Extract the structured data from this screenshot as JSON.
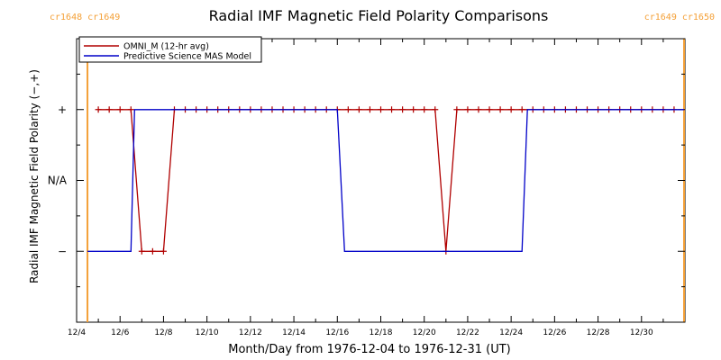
{
  "chart_data": {
    "type": "line",
    "title": "Radial IMF Magnetic Field Polarity Comparisons",
    "xlabel": "Month/Day from 1976-12-04 to 1976-12-31 (UT)",
    "ylabel": "Radial IMF Magnetic Field Polarity (−,+)",
    "xlim": [
      "1976-12-04 00:00",
      "1977-01-01 00:00"
    ],
    "ylim": [
      -2,
      2
    ],
    "grid": false,
    "legend_position": "top-left",
    "x_tick_labels": [
      "12/4",
      "12/6",
      "12/8",
      "12/10",
      "12/12",
      "12/14",
      "12/16",
      "12/18",
      "12/20",
      "12/22",
      "12/24",
      "12/26",
      "12/28",
      "12/30"
    ],
    "y_ticks": [
      {
        "label": "+",
        "value": 1
      },
      {
        "label": "N/A",
        "value": 0
      },
      {
        "label": "−",
        "value": -1
      }
    ],
    "carrington_markers": [
      {
        "time": "1976-12-04 12:00",
        "label": "cr1648 cr1649",
        "color": "#f4a037"
      },
      {
        "time": "1976-12-31 23:00",
        "label": "cr1649 cr1650",
        "color": "#f4a037"
      }
    ],
    "series": [
      {
        "name": "OMNI_M (12-hr avg)",
        "color": "#b00000",
        "marker": "+",
        "x": [
          "1976-12-05 00:00",
          "1976-12-05 12:00",
          "1976-12-06 00:00",
          "1976-12-06 12:00",
          "1976-12-07 00:00",
          "1976-12-07 12:00",
          "1976-12-08 00:00",
          "1976-12-08 12:00",
          "1976-12-09 00:00",
          "1976-12-09 12:00",
          "1976-12-10 00:00",
          "1976-12-10 12:00",
          "1976-12-11 00:00",
          "1976-12-11 12:00",
          "1976-12-12 00:00",
          "1976-12-12 12:00",
          "1976-12-13 00:00",
          "1976-12-13 12:00",
          "1976-12-14 00:00",
          "1976-12-14 12:00",
          "1976-12-15 00:00",
          "1976-12-15 12:00",
          "1976-12-16 00:00",
          "1976-12-16 12:00",
          "1976-12-17 00:00",
          "1976-12-17 12:00",
          "1976-12-18 00:00",
          "1976-12-18 12:00",
          "1976-12-19 00:00",
          "1976-12-19 12:00",
          "1976-12-20 00:00",
          "1976-12-20 12:00",
          "1976-12-21 00:00",
          "1976-12-21 12:00",
          "1976-12-22 00:00",
          "1976-12-22 12:00",
          "1976-12-23 00:00",
          "1976-12-23 12:00",
          "1976-12-24 00:00",
          "1976-12-24 12:00",
          "1976-12-25 00:00",
          "1976-12-25 12:00",
          "1976-12-26 00:00",
          "1976-12-26 12:00",
          "1976-12-27 00:00",
          "1976-12-27 12:00",
          "1976-12-28 00:00",
          "1976-12-28 12:00",
          "1976-12-29 00:00",
          "1976-12-29 12:00",
          "1976-12-30 00:00",
          "1976-12-30 12:00",
          "1976-12-31 00:00",
          "1976-12-31 12:00"
        ],
        "y": [
          1,
          1,
          1,
          1,
          -1,
          -1,
          -1,
          1,
          1,
          1,
          1,
          1,
          1,
          1,
          1,
          1,
          1,
          1,
          1,
          1,
          1,
          1,
          1,
          1,
          1,
          1,
          1,
          1,
          1,
          1,
          1,
          1,
          -1,
          1,
          1,
          1,
          1,
          1,
          1,
          1,
          1,
          1,
          1,
          1,
          1,
          1,
          1,
          1,
          1,
          1,
          1,
          1,
          1,
          1
        ]
      },
      {
        "name": "Predictive Science MAS Model",
        "color": "#0000c8",
        "x": [
          "1976-12-04 12:00",
          "1976-12-06 12:00",
          "1976-12-06 16:00",
          "1976-12-06 21:00",
          "1976-12-16 00:00",
          "1976-12-16 08:00",
          "1976-12-24 12:00",
          "1976-12-24 18:00",
          "1976-12-31 23:00"
        ],
        "y": [
          -1,
          -1,
          1,
          1,
          1,
          -1,
          -1,
          1,
          1
        ]
      }
    ]
  }
}
